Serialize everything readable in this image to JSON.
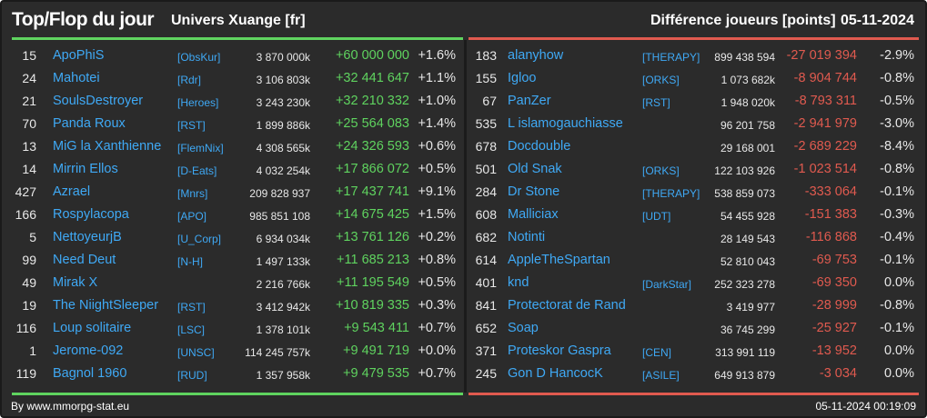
{
  "header": {
    "title": "Top/Flop du jour",
    "server": "Univers Xuange [fr]",
    "metric": "Différence joueurs [points]",
    "date": "05-11-2024"
  },
  "top": [
    {
      "rank": "15",
      "name": "ApoPhiS",
      "guild": "[ObsKur]",
      "points": "3 870 000k",
      "diff": "+60 000 000",
      "pct": "+1.6%"
    },
    {
      "rank": "24",
      "name": "Mahotei",
      "guild": "[Rdr]",
      "points": "3 106 803k",
      "diff": "+32 441 647",
      "pct": "+1.1%"
    },
    {
      "rank": "21",
      "name": "SoulsDestroyer",
      "guild": "[Heroes]",
      "points": "3 243 230k",
      "diff": "+32 210 332",
      "pct": "+1.0%"
    },
    {
      "rank": "70",
      "name": "Panda Roux",
      "guild": "[RST]",
      "points": "1 899 886k",
      "diff": "+25 564 083",
      "pct": "+1.4%"
    },
    {
      "rank": "13",
      "name": "MiG la Xanthienne",
      "guild": "[FlemNix]",
      "points": "4 308 565k",
      "diff": "+24 326 593",
      "pct": "+0.6%"
    },
    {
      "rank": "14",
      "name": "Mirrin Ellos",
      "guild": "[D-Eats]",
      "points": "4 032 254k",
      "diff": "+17 866 072",
      "pct": "+0.5%"
    },
    {
      "rank": "427",
      "name": "Azrael",
      "guild": "[Mnrs]",
      "points": "209 828 937",
      "diff": "+17 437 741",
      "pct": "+9.1%"
    },
    {
      "rank": "166",
      "name": "Rospylacopa",
      "guild": "[APO]",
      "points": "985 851 108",
      "diff": "+14 675 425",
      "pct": "+1.5%"
    },
    {
      "rank": "5",
      "name": "NettoyeurjB",
      "guild": "[U_Corp]",
      "points": "6 934 034k",
      "diff": "+13 761 126",
      "pct": "+0.2%"
    },
    {
      "rank": "99",
      "name": "Need Deut",
      "guild": "[N-H]",
      "points": "1 497 133k",
      "diff": "+11 685 213",
      "pct": "+0.8%"
    },
    {
      "rank": "49",
      "name": "Mirak X",
      "guild": "",
      "points": "2 216 766k",
      "diff": "+11 195 549",
      "pct": "+0.5%"
    },
    {
      "rank": "19",
      "name": "The NiightSleeper",
      "guild": "[RST]",
      "points": "3 412 942k",
      "diff": "+10 819 335",
      "pct": "+0.3%"
    },
    {
      "rank": "116",
      "name": "Loup solitaire",
      "guild": "[LSC]",
      "points": "1 378 101k",
      "diff": "+9 543 411",
      "pct": "+0.7%"
    },
    {
      "rank": "1",
      "name": "Jerome-092",
      "guild": "[UNSC]",
      "points": "114 245 757k",
      "diff": "+9 491 719",
      "pct": "+0.0%"
    },
    {
      "rank": "119",
      "name": "Bagnol 1960",
      "guild": "[RUD]",
      "points": "1 357 958k",
      "diff": "+9 479 535",
      "pct": "+0.7%"
    }
  ],
  "flop": [
    {
      "rank": "183",
      "name": "alanyhow",
      "guild": "[THERAPY]",
      "points": "899 438 594",
      "diff": "-27 019 394",
      "pct": "-2.9%"
    },
    {
      "rank": "155",
      "name": "Igloo",
      "guild": "[ORKS]",
      "points": "1 073 682k",
      "diff": "-8 904 744",
      "pct": "-0.8%"
    },
    {
      "rank": "67",
      "name": "PanZer",
      "guild": "[RST]",
      "points": "1 948 020k",
      "diff": "-8 793 311",
      "pct": "-0.5%"
    },
    {
      "rank": "535",
      "name": "L islamogauchiasse",
      "guild": "",
      "points": "96 201 758",
      "diff": "-2 941 979",
      "pct": "-3.0%"
    },
    {
      "rank": "678",
      "name": "Docdouble",
      "guild": "",
      "points": "29 168 001",
      "diff": "-2 689 229",
      "pct": "-8.4%"
    },
    {
      "rank": "501",
      "name": "Old Snak",
      "guild": "[ORKS]",
      "points": "122 103 926",
      "diff": "-1 023 514",
      "pct": "-0.8%"
    },
    {
      "rank": "284",
      "name": "Dr Stone",
      "guild": "[THERAPY]",
      "points": "538 859 073",
      "diff": "-333 064",
      "pct": "-0.1%"
    },
    {
      "rank": "608",
      "name": "Malliciax",
      "guild": "[UDT]",
      "points": "54 455 928",
      "diff": "-151 383",
      "pct": "-0.3%"
    },
    {
      "rank": "682",
      "name": "Notinti",
      "guild": "",
      "points": "28 149 543",
      "diff": "-116 868",
      "pct": "-0.4%"
    },
    {
      "rank": "614",
      "name": "AppleTheSpartan",
      "guild": "",
      "points": "52 810 043",
      "diff": "-69 753",
      "pct": "-0.1%"
    },
    {
      "rank": "401",
      "name": "knd",
      "guild": "[DarkStar]",
      "points": "252 323 278",
      "diff": "-69 350",
      "pct": "0.0%"
    },
    {
      "rank": "841",
      "name": "Protectorat de Rand",
      "guild": "",
      "points": "3 419 977",
      "diff": "-28 999",
      "pct": "-0.8%"
    },
    {
      "rank": "652",
      "name": "Soap",
      "guild": "",
      "points": "36 745 299",
      "diff": "-25 927",
      "pct": "-0.1%"
    },
    {
      "rank": "371",
      "name": "Proteskor Gaspra",
      "guild": "[CEN]",
      "points": "313 991 119",
      "diff": "-13 952",
      "pct": "0.0%"
    },
    {
      "rank": "245",
      "name": "Gon D HancocK",
      "guild": "[ASILE]",
      "points": "649 913 879",
      "diff": "-3 034",
      "pct": "0.0%"
    }
  ],
  "footer": {
    "source": "By www.mmorpg-stat.eu",
    "timestamp": "05-11-2024 00:19:09"
  },
  "colors": {
    "positive": "#5fd35f",
    "negative": "#e05a4f",
    "link": "#3fa9f5",
    "background": "#2b2b2b"
  }
}
